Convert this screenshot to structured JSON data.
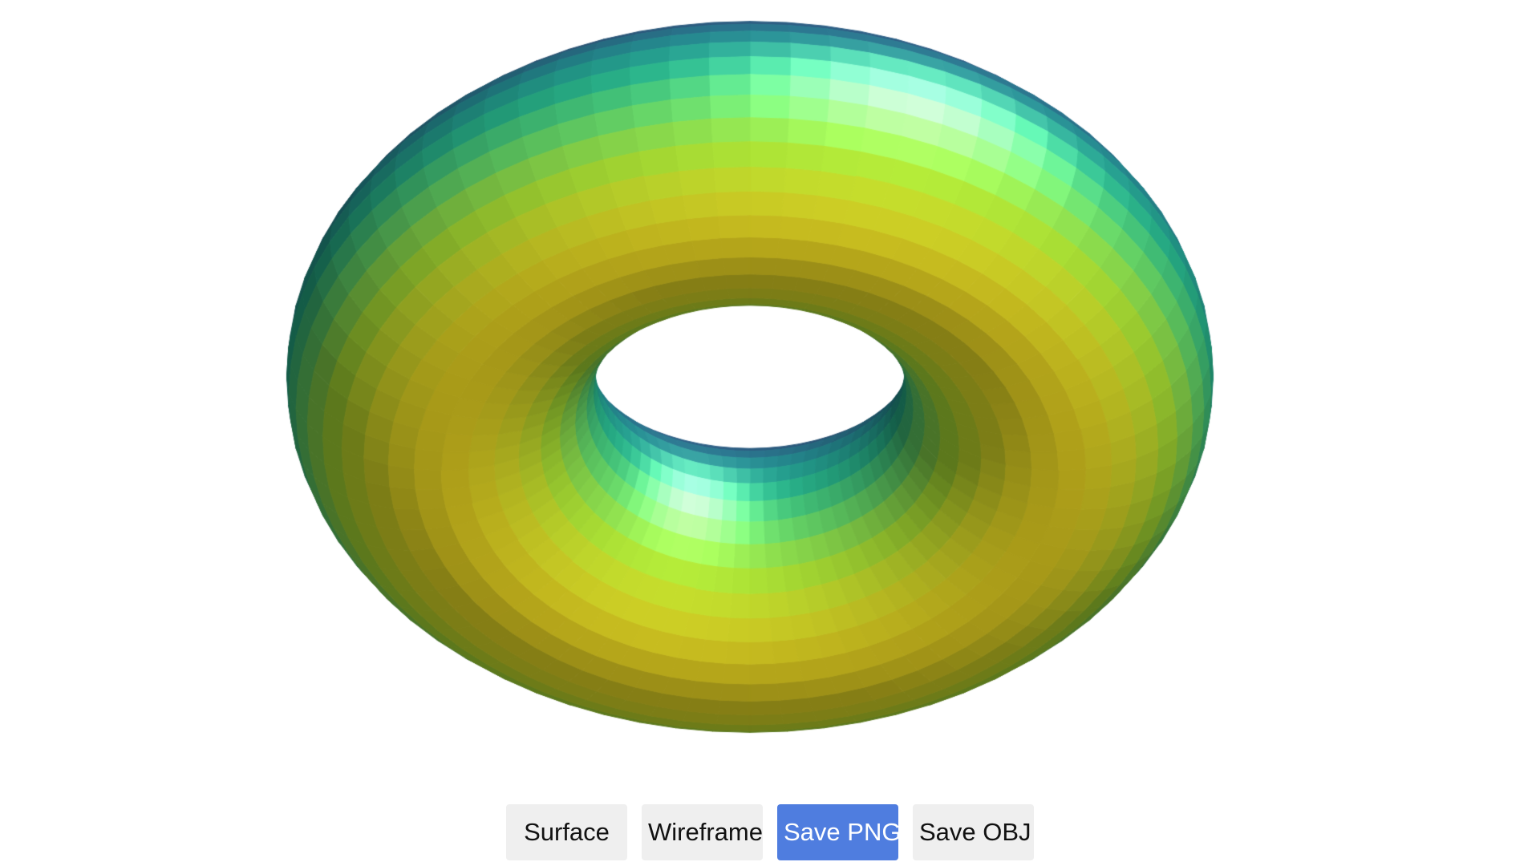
{
  "viewer": {
    "object": "torus",
    "render_mode": "surface",
    "colormap": "viridis"
  },
  "toolbar": {
    "surface_label": "Surface",
    "wireframe_label": "Wireframe",
    "save_png_label": "Save PNG",
    "save_obj_label": "Save OBJ",
    "active_button": "save_png",
    "active_color": "#4f7ddf",
    "active_text_color": "#ffffff",
    "inactive_color": "#efefef"
  }
}
